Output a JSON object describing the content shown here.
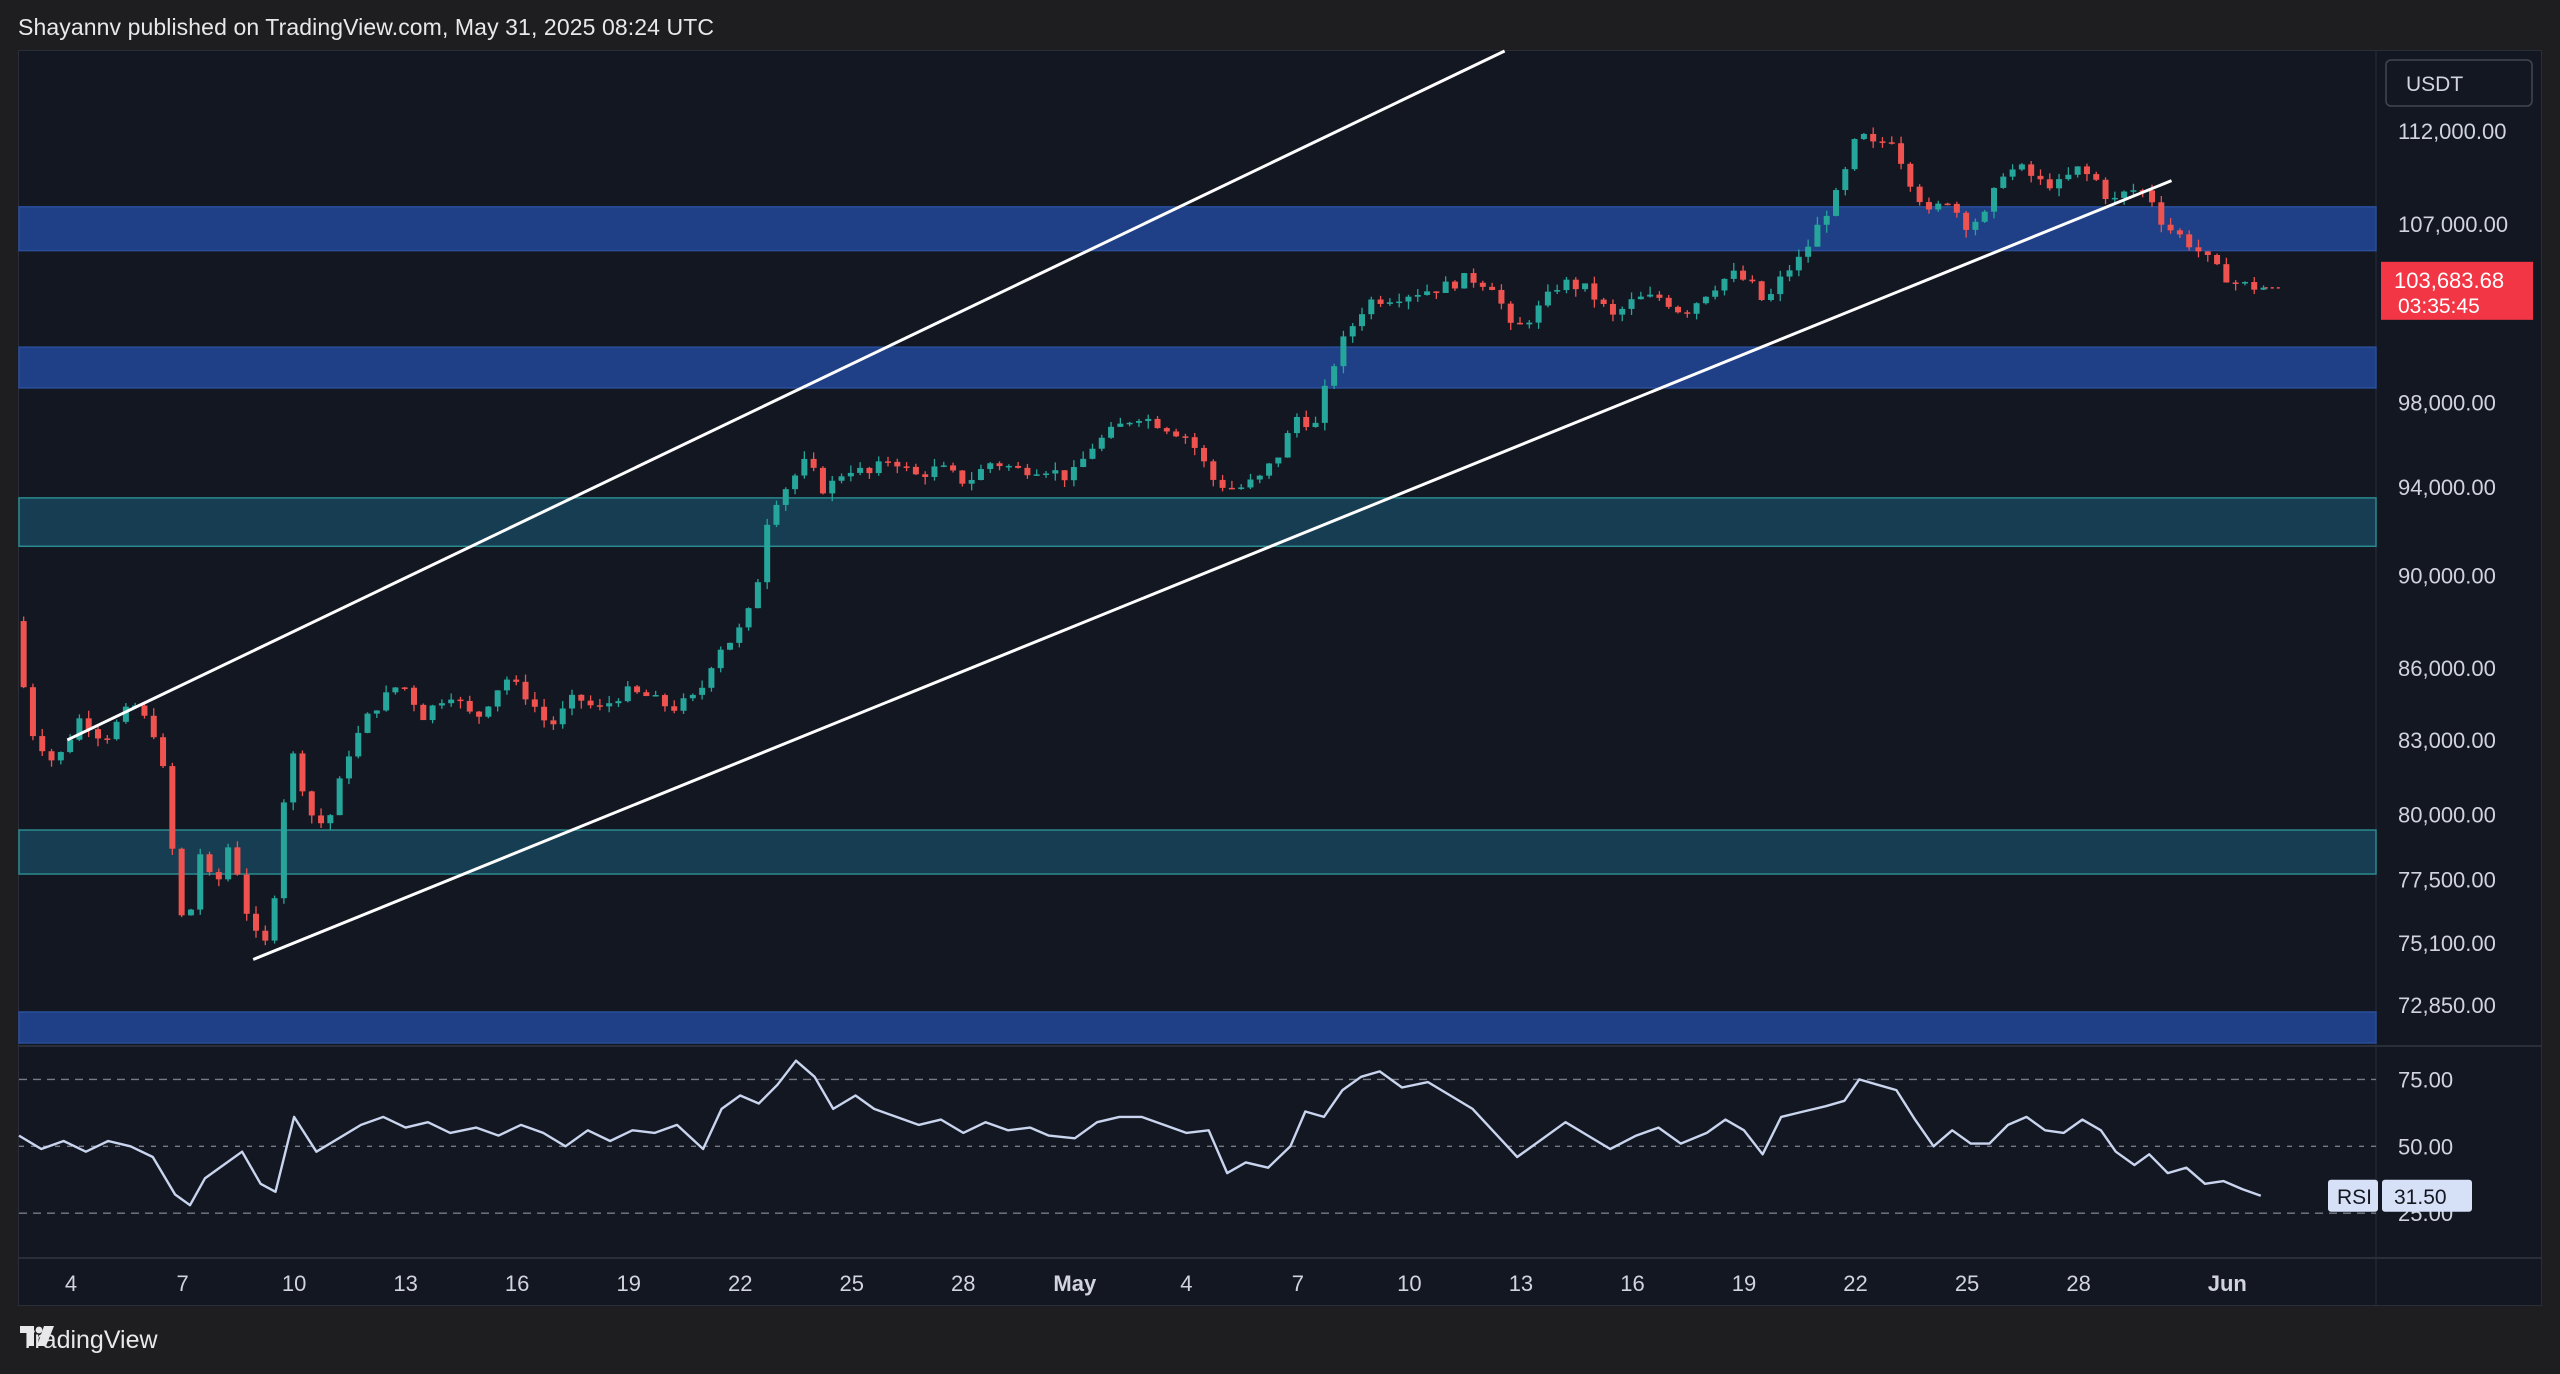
{
  "header": {
    "published_line": "Shayannv published on TradingView.com, May 31, 2025 08:24 UTC"
  },
  "footer": {
    "brand": "TradingView",
    "logo_icon": "tradingview-logo-icon"
  },
  "chart_data": {
    "type": "candlestick",
    "symbol_currency": "USDT",
    "current_price": {
      "value": "103,683.68",
      "countdown": "03:35:45",
      "color": "#f23645"
    },
    "price_axis": {
      "ticks": [
        112000,
        107000,
        98000,
        94000,
        90000,
        86000,
        83000,
        80000,
        77500,
        75100,
        72850
      ],
      "tick_labels": [
        "112,000.00",
        "107,000.00",
        "98,000.00",
        "94,000.00",
        "90,000.00",
        "86,000.00",
        "83,000.00",
        "80,000.00",
        "77,500.00",
        "75,100.00",
        "72,850.00"
      ],
      "ylim": [
        71500,
        116500
      ],
      "scale": "log"
    },
    "time_axis": {
      "labels": [
        {
          "text": "4",
          "day": 4
        },
        {
          "text": "7",
          "day": 7
        },
        {
          "text": "10",
          "day": 10
        },
        {
          "text": "13",
          "day": 13
        },
        {
          "text": "16",
          "day": 16
        },
        {
          "text": "19",
          "day": 19
        },
        {
          "text": "22",
          "day": 22
        },
        {
          "text": "25",
          "day": 25
        },
        {
          "text": "28",
          "day": 28
        },
        {
          "text": "May",
          "day": 31,
          "bold": true
        },
        {
          "text": "4",
          "day": 34
        },
        {
          "text": "7",
          "day": 37
        },
        {
          "text": "10",
          "day": 40
        },
        {
          "text": "13",
          "day": 43
        },
        {
          "text": "16",
          "day": 46
        },
        {
          "text": "19",
          "day": 49
        },
        {
          "text": "22",
          "day": 52
        },
        {
          "text": "25",
          "day": 55
        },
        {
          "text": "28",
          "day": 58
        },
        {
          "text": "Jun",
          "day": 62,
          "bold": true
        }
      ],
      "xlim": [
        2.6,
        66.0
      ]
    },
    "zones": [
      {
        "name": "resistance-zone-107k",
        "low": 105600,
        "high": 107900,
        "color": "#1f3f86"
      },
      {
        "name": "support-zone-100k",
        "low": 98700,
        "high": 100700,
        "color": "#1f3f86"
      },
      {
        "name": "support-zone-93k",
        "low": 91300,
        "high": 93500,
        "color": "#163d52"
      },
      {
        "name": "support-zone-79k",
        "low": 77700,
        "high": 79400,
        "color": "#163d52"
      },
      {
        "name": "support-zone-72k",
        "low": 71500,
        "high": 72600,
        "color": "#1f3f86"
      }
    ],
    "channel": {
      "upper": {
        "x1": 3.9,
        "y1": 83000,
        "x2": 51.5,
        "y2": 126000
      },
      "lower": {
        "x1": 8.9,
        "y1": 74500,
        "x2": 60.5,
        "y2": 109300
      }
    },
    "price_path": [
      [
        2.6,
        88000
      ],
      [
        3.0,
        83500
      ],
      [
        3.7,
        82000
      ],
      [
        4.4,
        84000
      ],
      [
        5.0,
        83000
      ],
      [
        5.8,
        84500
      ],
      [
        6.5,
        83000
      ],
      [
        6.9,
        78000
      ],
      [
        7.2,
        75100
      ],
      [
        7.6,
        78500
      ],
      [
        8.0,
        77000
      ],
      [
        8.4,
        79000
      ],
      [
        8.9,
        76000
      ],
      [
        9.3,
        74700
      ],
      [
        9.6,
        77000
      ],
      [
        10.0,
        82800
      ],
      [
        10.6,
        80000
      ],
      [
        11.0,
        79500
      ],
      [
        11.6,
        82500
      ],
      [
        12.2,
        84200
      ],
      [
        13.0,
        85400
      ],
      [
        13.6,
        84000
      ],
      [
        14.3,
        85000
      ],
      [
        15.0,
        83800
      ],
      [
        15.8,
        85600
      ],
      [
        16.4,
        84800
      ],
      [
        17.0,
        83500
      ],
      [
        17.7,
        84800
      ],
      [
        18.3,
        84200
      ],
      [
        19.0,
        85000
      ],
      [
        19.6,
        84800
      ],
      [
        20.3,
        84300
      ],
      [
        21.0,
        84800
      ],
      [
        21.5,
        86800
      ],
      [
        22.0,
        87300
      ],
      [
        22.5,
        88800
      ],
      [
        22.9,
        93000
      ],
      [
        23.4,
        94100
      ],
      [
        23.9,
        95200
      ],
      [
        24.4,
        93800
      ],
      [
        25.0,
        94900
      ],
      [
        25.6,
        94600
      ],
      [
        26.2,
        95400
      ],
      [
        26.8,
        94500
      ],
      [
        27.5,
        94900
      ],
      [
        28.2,
        94200
      ],
      [
        28.9,
        95200
      ],
      [
        29.6,
        94800
      ],
      [
        30.3,
        94900
      ],
      [
        31.0,
        94400
      ],
      [
        31.6,
        95900
      ],
      [
        32.2,
        96700
      ],
      [
        32.8,
        97400
      ],
      [
        33.5,
        96900
      ],
      [
        34.2,
        96300
      ],
      [
        34.9,
        94200
      ],
      [
        35.5,
        93900
      ],
      [
        36.1,
        94400
      ],
      [
        36.6,
        95500
      ],
      [
        37.1,
        97300
      ],
      [
        37.6,
        96900
      ],
      [
        38.0,
        99500
      ],
      [
        38.4,
        101200
      ],
      [
        39.0,
        103000
      ],
      [
        39.6,
        103200
      ],
      [
        40.4,
        103500
      ],
      [
        41.0,
        103700
      ],
      [
        41.7,
        104200
      ],
      [
        42.4,
        103800
      ],
      [
        42.9,
        101400
      ],
      [
        43.5,
        102400
      ],
      [
        44.2,
        104000
      ],
      [
        44.9,
        103600
      ],
      [
        45.6,
        102200
      ],
      [
        46.2,
        103100
      ],
      [
        46.9,
        103200
      ],
      [
        47.5,
        102400
      ],
      [
        48.2,
        103600
      ],
      [
        48.8,
        104400
      ],
      [
        49.3,
        103900
      ],
      [
        49.7,
        102800
      ],
      [
        50.2,
        104400
      ],
      [
        50.7,
        105300
      ],
      [
        51.2,
        107200
      ],
      [
        51.7,
        108800
      ],
      [
        52.2,
        111900
      ],
      [
        52.6,
        111200
      ],
      [
        53.1,
        111600
      ],
      [
        53.6,
        109300
      ],
      [
        54.1,
        107500
      ],
      [
        54.6,
        108300
      ],
      [
        55.1,
        107000
      ],
      [
        55.6,
        107400
      ],
      [
        56.1,
        109800
      ],
      [
        56.6,
        109900
      ],
      [
        57.1,
        109200
      ],
      [
        57.6,
        109100
      ],
      [
        58.1,
        109900
      ],
      [
        58.6,
        109300
      ],
      [
        59.0,
        108100
      ],
      [
        59.5,
        108800
      ],
      [
        60.0,
        108700
      ],
      [
        60.4,
        107000
      ],
      [
        60.9,
        106300
      ],
      [
        61.4,
        105500
      ],
      [
        61.9,
        104500
      ],
      [
        62.4,
        103900
      ],
      [
        62.9,
        103700
      ]
    ],
    "rsi": {
      "label": "RSI",
      "value": "31.50",
      "levels": [
        75.0,
        50.0,
        25.0
      ],
      "level_labels": [
        "75.00",
        "50.00",
        "25.00"
      ],
      "ylim": [
        9,
        86
      ],
      "line_color": "#c9d5ee",
      "path": [
        [
          2.6,
          54
        ],
        [
          3.2,
          49
        ],
        [
          3.8,
          52
        ],
        [
          4.4,
          48
        ],
        [
          5.0,
          52
        ],
        [
          5.6,
          50
        ],
        [
          6.2,
          46
        ],
        [
          6.8,
          32
        ],
        [
          7.2,
          28
        ],
        [
          7.6,
          38
        ],
        [
          8.1,
          43
        ],
        [
          8.6,
          48
        ],
        [
          9.1,
          36
        ],
        [
          9.5,
          33
        ],
        [
          10.0,
          61
        ],
        [
          10.6,
          48
        ],
        [
          11.2,
          53
        ],
        [
          11.8,
          58
        ],
        [
          12.4,
          61
        ],
        [
          13.0,
          57
        ],
        [
          13.6,
          59
        ],
        [
          14.2,
          55
        ],
        [
          14.9,
          57
        ],
        [
          15.5,
          54
        ],
        [
          16.1,
          58
        ],
        [
          16.7,
          55
        ],
        [
          17.3,
          50
        ],
        [
          17.9,
          56
        ],
        [
          18.5,
          52
        ],
        [
          19.1,
          56
        ],
        [
          19.7,
          55
        ],
        [
          20.3,
          58
        ],
        [
          21.0,
          49
        ],
        [
          21.5,
          64
        ],
        [
          22.0,
          69
        ],
        [
          22.5,
          66
        ],
        [
          23.0,
          73
        ],
        [
          23.5,
          82
        ],
        [
          24.0,
          76
        ],
        [
          24.5,
          64
        ],
        [
          25.1,
          69
        ],
        [
          25.6,
          64
        ],
        [
          26.2,
          61
        ],
        [
          26.8,
          58
        ],
        [
          27.4,
          60
        ],
        [
          28.0,
          55
        ],
        [
          28.6,
          59
        ],
        [
          29.2,
          56
        ],
        [
          29.8,
          57
        ],
        [
          30.3,
          54
        ],
        [
          31.0,
          53
        ],
        [
          31.6,
          59
        ],
        [
          32.2,
          61
        ],
        [
          32.8,
          61
        ],
        [
          33.4,
          58
        ],
        [
          34.0,
          55
        ],
        [
          34.6,
          56
        ],
        [
          35.1,
          40
        ],
        [
          35.6,
          44
        ],
        [
          36.2,
          42
        ],
        [
          36.8,
          50
        ],
        [
          37.2,
          63
        ],
        [
          37.7,
          61
        ],
        [
          38.2,
          71
        ],
        [
          38.7,
          76
        ],
        [
          39.2,
          78
        ],
        [
          39.8,
          72
        ],
        [
          40.5,
          74
        ],
        [
          41.1,
          69
        ],
        [
          41.7,
          64
        ],
        [
          42.3,
          55
        ],
        [
          42.9,
          46
        ],
        [
          43.5,
          52
        ],
        [
          44.2,
          59
        ],
        [
          44.8,
          54
        ],
        [
          45.4,
          49
        ],
        [
          46.1,
          54
        ],
        [
          46.7,
          57
        ],
        [
          47.3,
          51
        ],
        [
          48.0,
          55
        ],
        [
          48.5,
          60
        ],
        [
          49.0,
          56
        ],
        [
          49.5,
          47
        ],
        [
          50.0,
          61
        ],
        [
          50.6,
          63
        ],
        [
          51.2,
          65
        ],
        [
          51.7,
          67
        ],
        [
          52.1,
          75
        ],
        [
          52.6,
          73
        ],
        [
          53.1,
          71
        ],
        [
          53.6,
          60
        ],
        [
          54.1,
          50
        ],
        [
          54.6,
          56
        ],
        [
          55.1,
          51
        ],
        [
          55.6,
          51
        ],
        [
          56.1,
          58
        ],
        [
          56.6,
          61
        ],
        [
          57.1,
          56
        ],
        [
          57.6,
          55
        ],
        [
          58.1,
          60
        ],
        [
          58.6,
          56
        ],
        [
          59.0,
          48
        ],
        [
          59.5,
          43
        ],
        [
          59.9,
          47
        ],
        [
          60.4,
          40
        ],
        [
          60.9,
          42
        ],
        [
          61.4,
          36
        ],
        [
          61.9,
          37
        ],
        [
          62.4,
          34
        ],
        [
          62.9,
          31.5
        ]
      ]
    }
  }
}
